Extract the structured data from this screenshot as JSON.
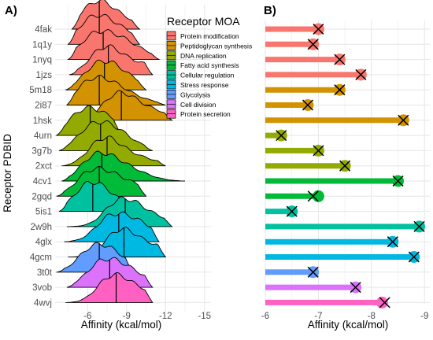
{
  "chart_data": [
    {
      "panel": "A)",
      "type": "ridgeline",
      "xlabel": "Affinity (kcal/mol)",
      "ylabel": "Receptor PDBID",
      "x_ticks": [
        -6,
        -9,
        -12,
        -15
      ],
      "xlim": [
        -3.5,
        -15.5
      ],
      "axis_reversed": true,
      "grid": true,
      "legend": {
        "title": "Receptor MOA",
        "placement": "top-right",
        "entries": [
          {
            "label": "Protein modification",
            "color": "#F8766D"
          },
          {
            "label": "Peptidoglycan synthesis",
            "color": "#D39200"
          },
          {
            "label": "DNA replication",
            "color": "#93AA00"
          },
          {
            "label": "Fatty acid synthesis",
            "color": "#00BA38"
          },
          {
            "label": "Cellular regulation",
            "color": "#00C19F"
          },
          {
            "label": "Stress response",
            "color": "#00B9E3"
          },
          {
            "label": "Glycolysis",
            "color": "#619CFF"
          },
          {
            "label": "Cell division",
            "color": "#DB72FB"
          },
          {
            "label": "Protein secretion",
            "color": "#FF61C3"
          }
        ]
      },
      "categories": [
        "4fak",
        "1q1y",
        "1nyq",
        "1jzs",
        "5m18",
        "2i87",
        "1hsk",
        "4urn",
        "3g7b",
        "2xct",
        "4cv1",
        "2gqd",
        "5is1",
        "2w9h",
        "4glx",
        "4gcm",
        "3t0t",
        "3vob",
        "4wvj"
      ],
      "group": [
        "Protein modification",
        "Protein modification",
        "Protein modification",
        "Protein modification",
        "Peptidoglycan synthesis",
        "Peptidoglycan synthesis",
        "Peptidoglycan synthesis",
        "DNA replication",
        "DNA replication",
        "DNA replication",
        "Fatty acid synthesis",
        "Fatty acid synthesis",
        "Cellular regulation",
        "Cellular regulation",
        "Stress response",
        "Stress response",
        "Glycolysis",
        "Cell division",
        "Protein secretion"
      ],
      "median": [
        -6.9,
        -6.9,
        -7.2,
        -7.6,
        -7.3,
        -6.9,
        -8.6,
        -6.2,
        -7.0,
        -7.5,
        -7.1,
        -6.9,
        -6.4,
        -8.9,
        -8.4,
        -8.8,
        -6.9,
        -7.7,
        -8.2
      ],
      "range": [
        [
          -4.8,
          -10.0
        ],
        [
          -4.5,
          -10.0
        ],
        [
          -4.5,
          -11.5
        ],
        [
          -4.6,
          -11.0
        ],
        [
          -4.3,
          -10.5
        ],
        [
          -4.4,
          -12.0
        ],
        [
          -4.6,
          -12.5
        ],
        [
          -3.6,
          -8.6
        ],
        [
          -3.8,
          -11.0
        ],
        [
          -4.0,
          -12.0
        ],
        [
          -4.0,
          -13.5
        ],
        [
          -3.6,
          -10.5
        ],
        [
          -3.8,
          -9.5
        ],
        [
          -4.4,
          -12.5
        ],
        [
          -4.2,
          -11.5
        ],
        [
          -4.5,
          -12.0
        ],
        [
          -3.6,
          -9.5
        ],
        [
          -4.4,
          -11.0
        ],
        [
          -4.3,
          -11.0
        ]
      ]
    },
    {
      "panel": "B)",
      "type": "lollipop",
      "xlabel": "Affinity (kcal/mol)",
      "x_ticks": [
        -6,
        -7,
        -8,
        -9
      ],
      "xlim": [
        -6.0,
        -9.1
      ],
      "axis_reversed": true,
      "grid": true,
      "categories": [
        "4fak",
        "1q1y",
        "1nyq",
        "1jzs",
        "5m18",
        "2i87",
        "1hsk",
        "4urn",
        "3g7b",
        "2xct",
        "4cv1",
        "2gqd",
        "5is1",
        "2w9h",
        "4glx",
        "4gcm",
        "3t0t",
        "3vob",
        "4wvj"
      ],
      "values": [
        -7.0,
        -6.9,
        -7.4,
        -7.8,
        -7.4,
        -6.8,
        -8.6,
        -6.3,
        -7.0,
        -7.5,
        -8.5,
        -7.0,
        -6.5,
        -8.9,
        -8.4,
        -8.8,
        -6.9,
        -7.7,
        -8.2
      ],
      "cross_values": [
        -7.0,
        -6.9,
        -7.4,
        -7.8,
        -7.4,
        -6.8,
        -8.6,
        -6.3,
        -7.0,
        -7.5,
        -8.5,
        -6.9,
        -6.5,
        -8.9,
        -8.4,
        -8.8,
        -6.9,
        -7.7,
        -8.25
      ]
    }
  ]
}
